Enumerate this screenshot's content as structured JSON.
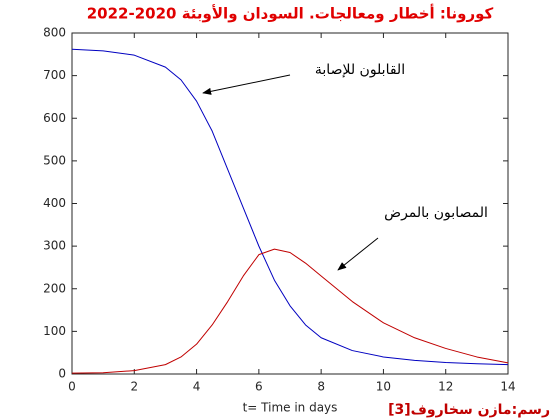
{
  "chart_data": {
    "type": "line",
    "title": "كورونا: أخطار ومعالجات.  السودان والأوبئة 2020-2022",
    "xlabel": "t= Time in days",
    "credit": "رسم:مازن سخاروف[3]",
    "x": [
      0,
      1,
      2,
      3,
      3.5,
      4,
      4.5,
      5,
      5.5,
      6,
      6.5,
      7,
      7.5,
      8,
      9,
      10,
      11,
      12,
      13,
      14
    ],
    "series": [
      {
        "color": "#0000c0",
        "values": [
          762,
          758,
          748,
          720,
          690,
          640,
          570,
          480,
          390,
          300,
          220,
          160,
          115,
          85,
          55,
          40,
          32,
          27,
          24,
          22
        ]
      },
      {
        "color": "#c00000",
        "values": [
          2,
          3,
          8,
          22,
          40,
          70,
          115,
          170,
          230,
          280,
          293,
          285,
          260,
          230,
          170,
          120,
          85,
          60,
          40,
          26
        ]
      }
    ],
    "annotations": [
      {
        "text": "القابلون للإصابة"
      },
      {
        "text": "المصابون بالمرض"
      }
    ],
    "xlim": [
      0,
      14
    ],
    "xticks": [
      0,
      2,
      4,
      6,
      8,
      10,
      12,
      14
    ],
    "ylim": [
      0,
      800
    ],
    "yticks": [
      0,
      100,
      200,
      300,
      400,
      500,
      600,
      700,
      800
    ],
    "grid": false
  }
}
